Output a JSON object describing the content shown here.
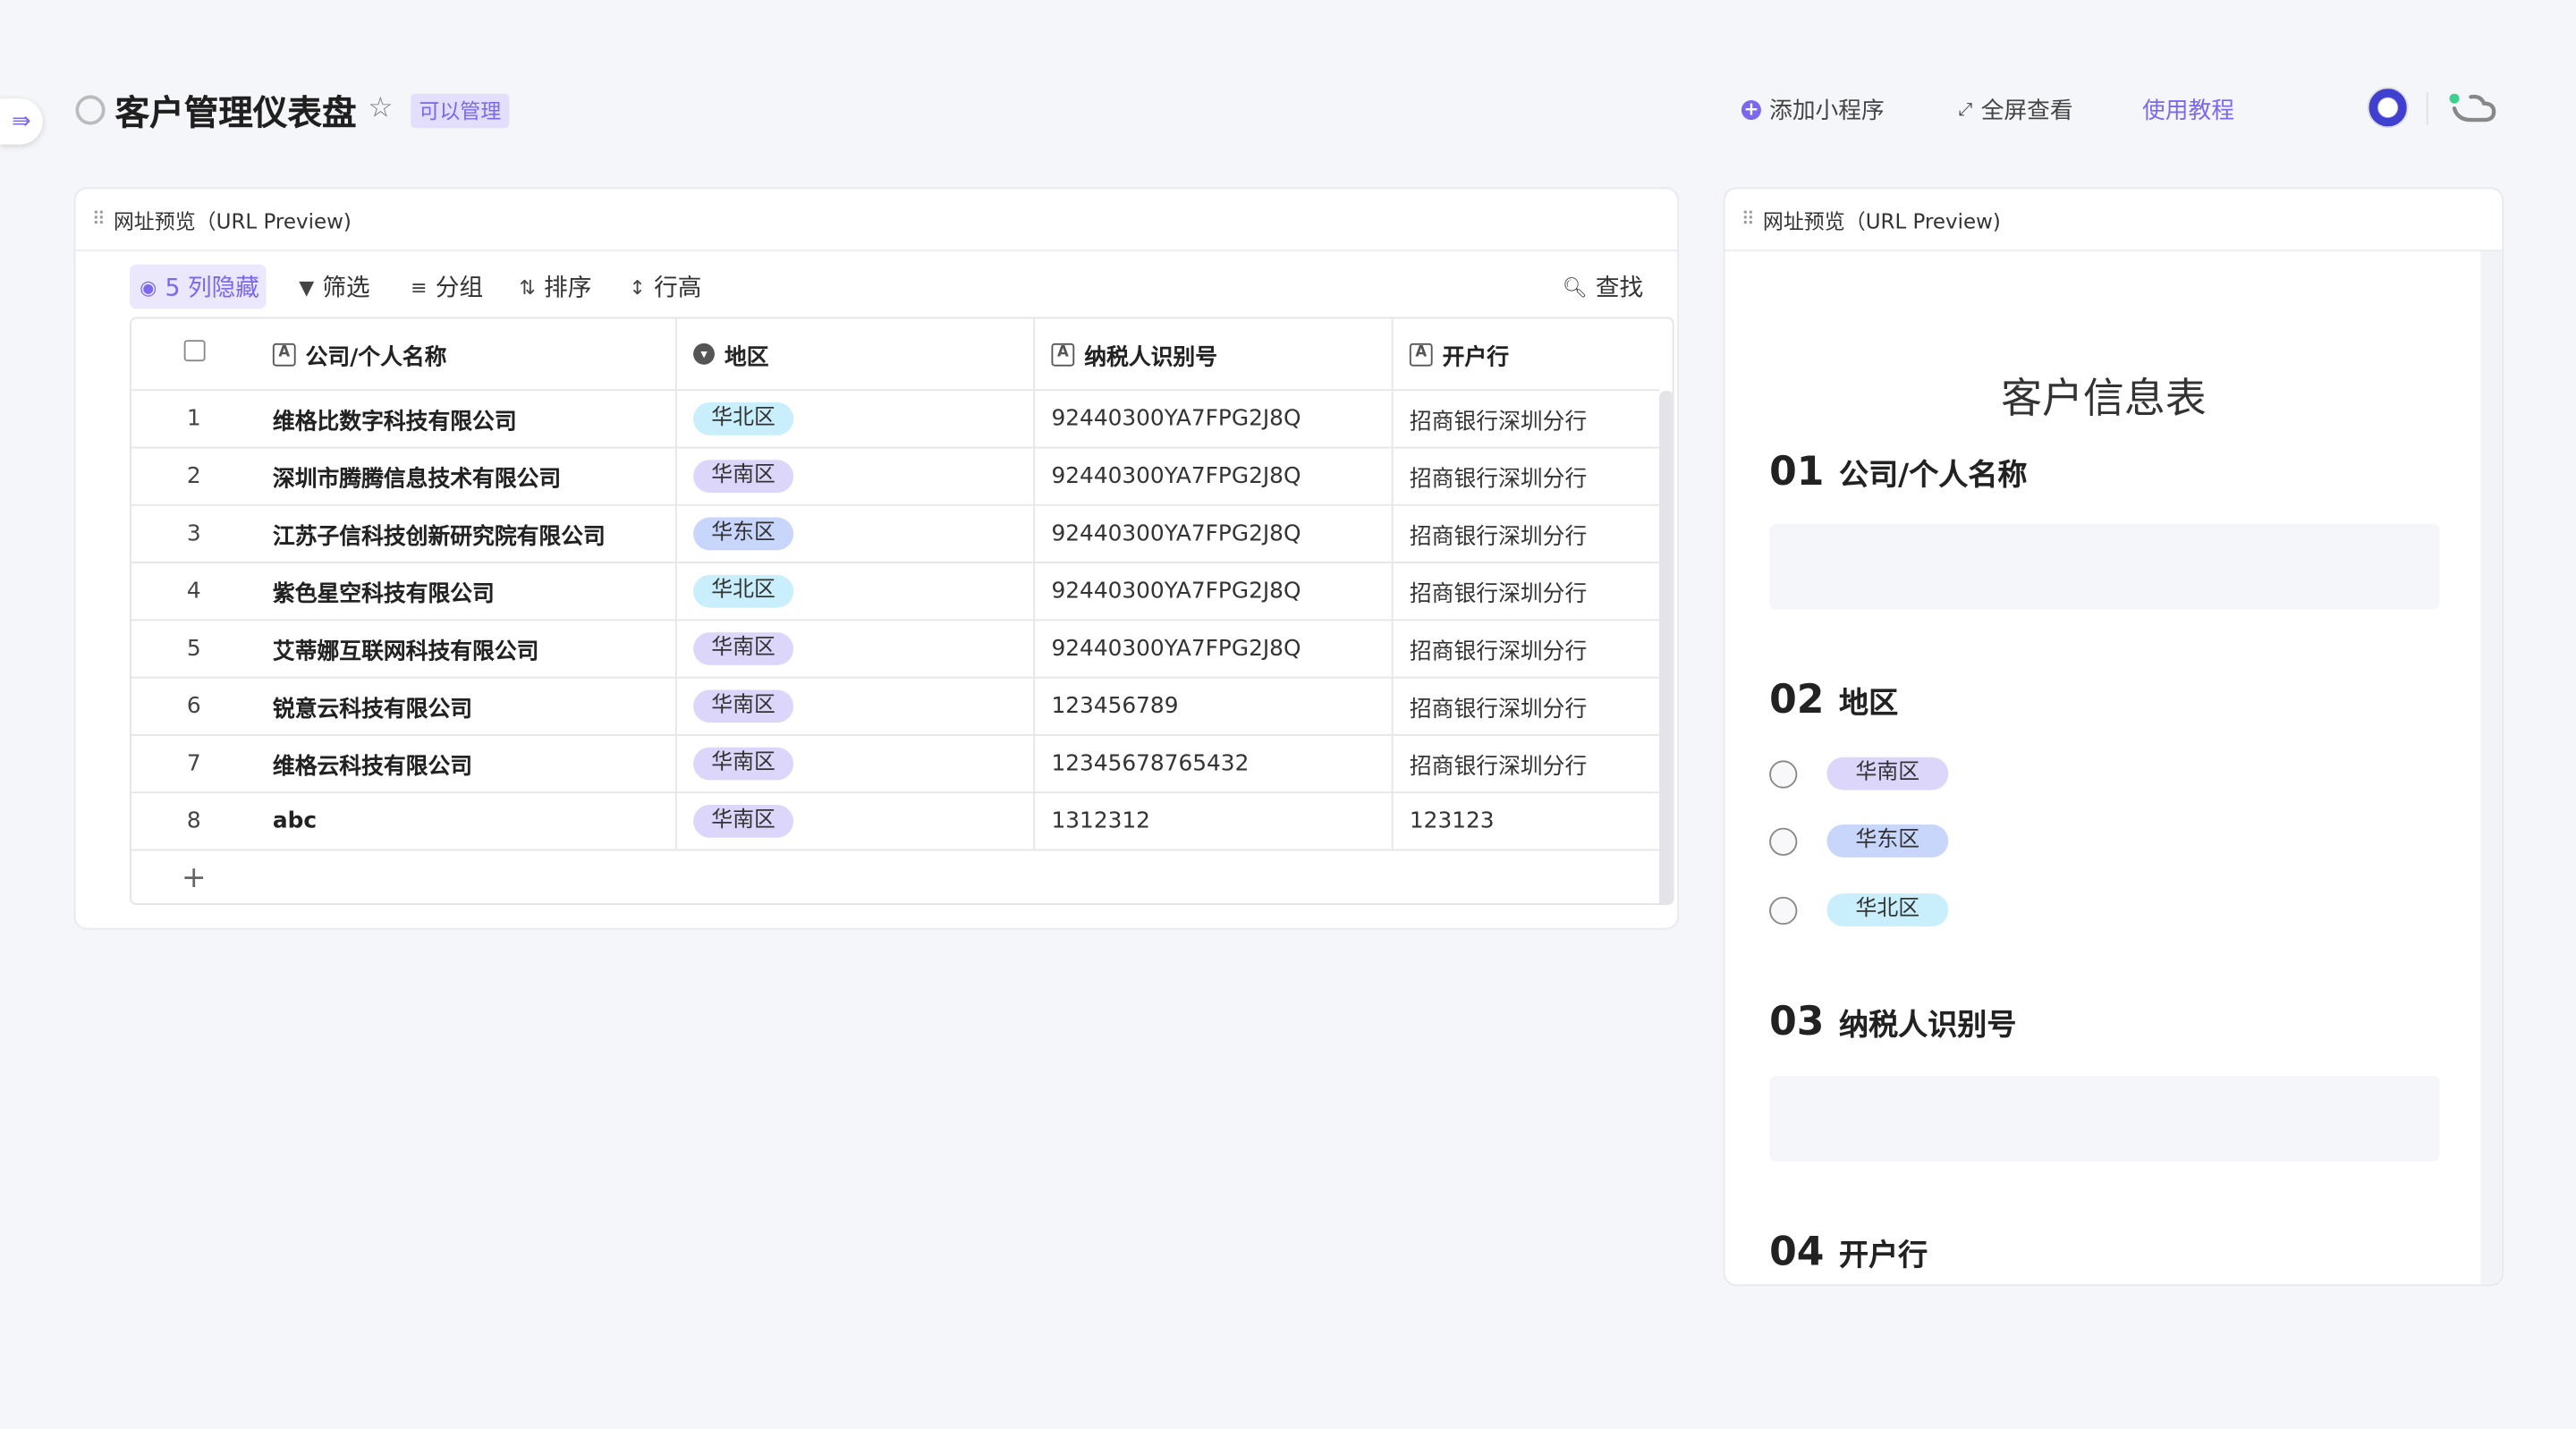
{
  "header": {
    "title": "客户管理仪表盘",
    "permission_badge": "可以管理",
    "add_mini_app": "添加小程序",
    "fullscreen": "全屏查看",
    "tutorial": "使用教程"
  },
  "colors": {
    "accent": "#7b68ee",
    "tag_south": "#ddd6fb",
    "tag_east": "#c8d6fc",
    "tag_north": "#c9eefc"
  },
  "left_widget": {
    "title": "网址预览（URL Preview)",
    "toolbar": {
      "hidden_columns": "5 列隐藏",
      "filter": "筛选",
      "group": "分组",
      "sort": "排序",
      "row_height": "行高",
      "search": "查找"
    },
    "columns": [
      "公司/个人名称",
      "地区",
      "纳税人识别号",
      "开户行"
    ],
    "rows": [
      {
        "no": "1",
        "name": "维格比数字科技有限公司",
        "region": "华北区",
        "tax_id": "92440300YA7FPG2J8Q",
        "bank": "招商银行深圳分行"
      },
      {
        "no": "2",
        "name": "深圳市腾腾信息技术有限公司",
        "region": "华南区",
        "tax_id": "92440300YA7FPG2J8Q",
        "bank": "招商银行深圳分行"
      },
      {
        "no": "3",
        "name": "江苏子信科技创新研究院有限公司",
        "region": "华东区",
        "tax_id": "92440300YA7FPG2J8Q",
        "bank": "招商银行深圳分行"
      },
      {
        "no": "4",
        "name": "紫色星空科技有限公司",
        "region": "华北区",
        "tax_id": "92440300YA7FPG2J8Q",
        "bank": "招商银行深圳分行"
      },
      {
        "no": "5",
        "name": "艾蒂娜互联网科技有限公司",
        "region": "华南区",
        "tax_id": "92440300YA7FPG2J8Q",
        "bank": "招商银行深圳分行"
      },
      {
        "no": "6",
        "name": "锐意云科技有限公司",
        "region": "华南区",
        "tax_id": "123456789",
        "bank": "招商银行深圳分行"
      },
      {
        "no": "7",
        "name": "维格云科技有限公司",
        "region": "华南区",
        "tax_id": "12345678765432",
        "bank": "招商银行深圳分行"
      },
      {
        "no": "8",
        "name": "abc",
        "region": "华南区",
        "tax_id": "1312312",
        "bank": "123123"
      }
    ],
    "add_row": "+"
  },
  "right_widget": {
    "title": "网址预览（URL Preview)",
    "form_title": "客户信息表",
    "sections": [
      {
        "num": "01",
        "label": "公司/个人名称"
      },
      {
        "num": "02",
        "label": "地区",
        "options": [
          "华南区",
          "华东区",
          "华北区"
        ]
      },
      {
        "num": "03",
        "label": "纳税人识别号"
      },
      {
        "num": "04",
        "label": "开户行"
      }
    ]
  }
}
